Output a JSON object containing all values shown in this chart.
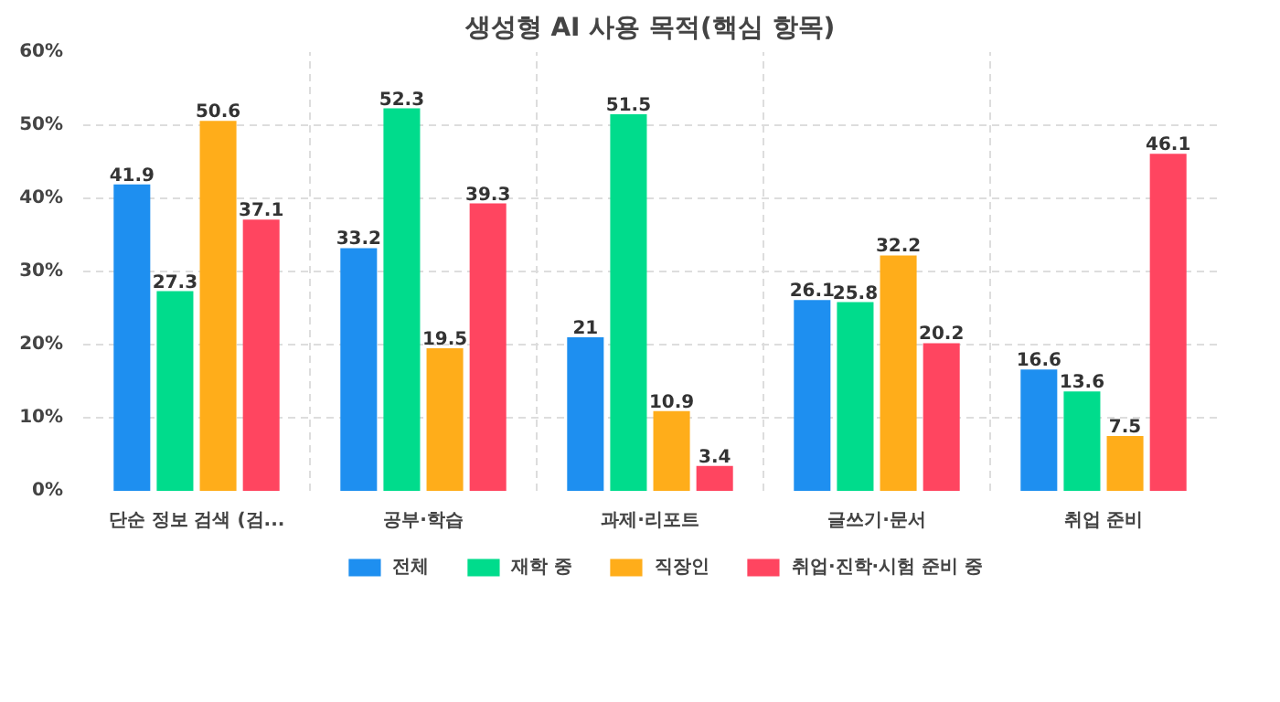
{
  "chart_data": {
    "type": "bar",
    "title": "생성형 AI 사용 목적(핵심 항목)",
    "categories": [
      "단순 정보 검색 (검...",
      "공부·학습",
      "과제·리포트",
      "글쓰기·문서",
      "취업 준비"
    ],
    "series": [
      {
        "name": "전체",
        "color": "#1e8ff0",
        "values": [
          41.9,
          33.2,
          21,
          26.1,
          16.6
        ]
      },
      {
        "name": "재학 중",
        "color": "#00dc8c",
        "values": [
          27.3,
          52.3,
          51.5,
          25.8,
          13.6
        ]
      },
      {
        "name": "직장인",
        "color": "#ffad1a",
        "values": [
          50.6,
          19.5,
          10.9,
          32.2,
          7.5
        ]
      },
      {
        "name": "취업·진학·시험 준비 중",
        "color": "#ff4560",
        "values": [
          37.1,
          39.3,
          3.4,
          20.2,
          46.1
        ]
      }
    ],
    "ylim": [
      0,
      60
    ],
    "yticks": [
      {
        "value": 0,
        "label": "0%"
      },
      {
        "value": 10,
        "label": "10%"
      },
      {
        "value": 20,
        "label": "20%"
      },
      {
        "value": 30,
        "label": "30%"
      },
      {
        "value": 40,
        "label": "40%"
      },
      {
        "value": 50,
        "label": "50%"
      },
      {
        "value": 60,
        "label": "60%"
      }
    ],
    "grid": true,
    "legend": "bottom",
    "data_labels": true
  }
}
